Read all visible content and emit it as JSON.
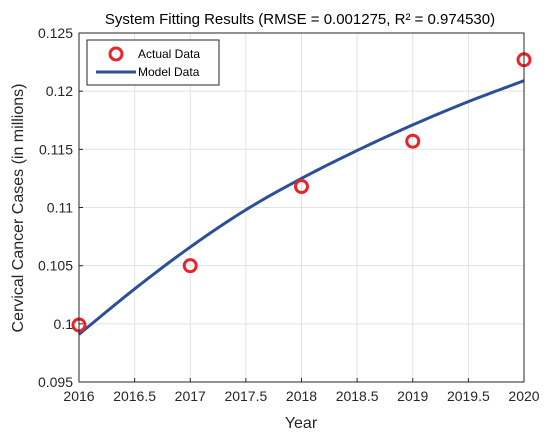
{
  "chart_data": {
    "type": "line",
    "title": "System Fitting Results (RMSE = 0.001275, R² = 0.974530)",
    "xlabel": "Year",
    "ylabel": "Cervical Cancer Cases (in millions)",
    "xlim": [
      2016,
      2020
    ],
    "ylim": [
      0.095,
      0.125
    ],
    "xticks": [
      "2016",
      "2016.5",
      "2017",
      "2017.5",
      "2018",
      "2018.5",
      "2019",
      "2019.5",
      "2020"
    ],
    "yticks": [
      "0.095",
      "0.1",
      "0.105",
      "0.11",
      "0.115",
      "0.12",
      "0.125"
    ],
    "grid": true,
    "legend_position": "top-left",
    "series": [
      {
        "name": "Actual Data",
        "kind": "scatter",
        "marker": "circle",
        "color": "#e8262a",
        "x": [
          2016,
          2017,
          2018,
          2019,
          2020
        ],
        "y": [
          0.0999,
          0.105,
          0.1118,
          0.1157,
          0.1227
        ]
      },
      {
        "name": "Model Data",
        "kind": "line",
        "color": "#2c4f9a",
        "x": [
          2016,
          2016.5,
          2017,
          2017.5,
          2018,
          2018.5,
          2019,
          2019.5,
          2020
        ],
        "y": [
          0.0991,
          0.103,
          0.1066,
          0.1098,
          0.1125,
          0.1149,
          0.1171,
          0.1191,
          0.1209
        ]
      }
    ]
  }
}
